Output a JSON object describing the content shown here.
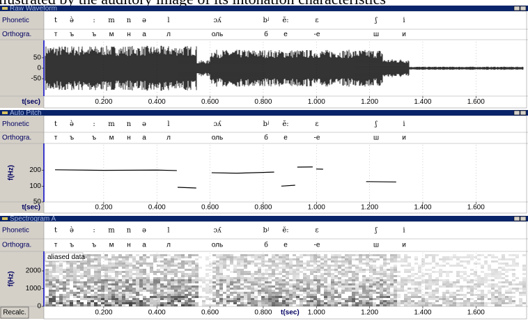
{
  "header_text": "llustrated by the auditory image of its intonation characteristics",
  "row_labels": {
    "phonetic": "Phonetic",
    "orthographic": "Orthogra."
  },
  "transcription": {
    "phonetic": [
      "t",
      "ə̀",
      ":",
      "m",
      "n",
      "ə",
      "l",
      "ɔʎ",
      "bʲ",
      "ĕ:",
      "ɛ",
      "ʃ",
      "i"
    ],
    "orthographic": [
      "т",
      "ъ",
      "ъ",
      "м",
      "н",
      "а",
      "л",
      "оль",
      "б",
      "е",
      "-е",
      "ш",
      "и"
    ]
  },
  "time_axis": {
    "label": "t(sec)",
    "xlim": [
      -0.025,
      1.78
    ],
    "ticks": [
      {
        "value": 0.2,
        "label": "0.200"
      },
      {
        "value": 0.4,
        "label": "0.400"
      },
      {
        "value": 0.6,
        "label": "0.600"
      },
      {
        "value": 0.8,
        "label": "0.800"
      },
      {
        "value": 1.0,
        "label": "1.000"
      },
      {
        "value": 1.2,
        "label": "1.200"
      },
      {
        "value": 1.4,
        "label": "1.400"
      },
      {
        "value": 1.6,
        "label": "1.600"
      }
    ]
  },
  "panels": [
    {
      "title": "Raw Waveform",
      "ylim": [
        -133,
        133
      ],
      "yticks": [
        50,
        0,
        -50
      ]
    },
    {
      "title": "Auto Pitch",
      "y_label": "f(Hz)",
      "log_scale": true,
      "ylim": [
        50,
        650
      ],
      "yticks": [
        200,
        100,
        50
      ],
      "pitch_segments": [
        {
          "t": [
            0.017,
            0.2,
            0.4,
            0.475
          ],
          "hz": [
            205,
            200,
            202,
            198
          ]
        },
        {
          "t": [
            0.478,
            0.548
          ],
          "hz": [
            95,
            92
          ]
        },
        {
          "t": [
            0.606,
            0.7,
            0.841
          ],
          "hz": [
            180,
            176,
            185
          ]
        },
        {
          "t": [
            0.868,
            0.92
          ],
          "hz": [
            100,
            104
          ]
        },
        {
          "t": [
            0.928,
            0.986
          ],
          "hz": [
            230,
            232
          ]
        },
        {
          "t": [
            0.999,
            1.025
          ],
          "hz": [
            212,
            210
          ]
        },
        {
          "t": [
            1.187,
            1.3
          ],
          "hz": [
            122,
            120
          ]
        }
      ]
    },
    {
      "title": "Spectrogram A",
      "y_label": "f(Hz)",
      "ylim": [
        0,
        3100
      ],
      "yticks": [
        2000,
        1000,
        0
      ],
      "note": "aliased data",
      "button": "Recalc."
    }
  ]
}
